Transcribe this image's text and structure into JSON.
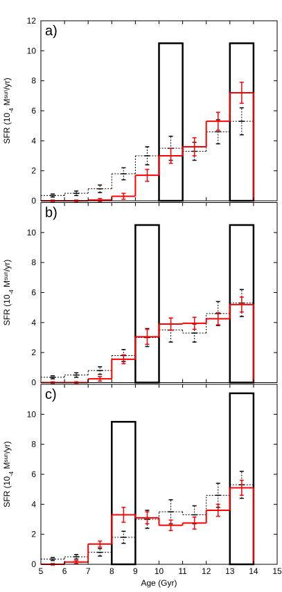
{
  "chart_data": [
    {
      "type": "histogram",
      "label": "a)",
      "ylabel": [
        "SFR (10",
        "-4",
        " M",
        "sun",
        "/yr)"
      ],
      "bins": [
        5,
        6,
        7,
        8,
        9,
        10,
        11,
        12,
        13,
        14
      ],
      "xlim": [
        5,
        15
      ],
      "ylim": [
        0,
        12
      ],
      "yticks": [
        0,
        2,
        4,
        6,
        8,
        10,
        12
      ],
      "bursts": [
        {
          "x": [
            10,
            11
          ],
          "height": 10.5
        },
        {
          "x": [
            13,
            14
          ],
          "height": 10.5
        }
      ],
      "series": [
        {
          "color": "#000000",
          "dashed": true,
          "values": [
            0.35,
            0.5,
            0.8,
            1.8,
            3.0,
            3.5,
            3.3,
            4.6,
            5.3
          ],
          "errors": [
            0.1,
            0.15,
            0.25,
            0.4,
            0.6,
            0.8,
            0.6,
            0.8,
            0.9
          ]
        },
        {
          "color": "#ff0000",
          "dashed": false,
          "values": [
            0,
            0,
            0.05,
            0.3,
            1.7,
            3.0,
            3.6,
            5.3,
            7.2
          ],
          "errors": [
            0.05,
            0.05,
            0.1,
            0.2,
            0.4,
            0.5,
            0.6,
            0.6,
            0.7
          ]
        }
      ]
    },
    {
      "type": "histogram",
      "label": "b)",
      "ylabel": [
        "SFR (10",
        "-4",
        " M",
        "sun",
        "/yr)"
      ],
      "bins": [
        5,
        6,
        7,
        8,
        9,
        10,
        11,
        12,
        13,
        14
      ],
      "xlim": [
        5,
        15
      ],
      "ylim": [
        0,
        12
      ],
      "yticks": [
        0,
        2,
        4,
        6,
        8,
        10
      ],
      "bursts": [
        {
          "x": [
            9,
            10
          ],
          "height": 10.5
        },
        {
          "x": [
            13,
            14
          ],
          "height": 10.5
        }
      ],
      "series": [
        {
          "color": "#000000",
          "dashed": true,
          "values": [
            0.35,
            0.5,
            0.8,
            1.8,
            3.0,
            3.5,
            3.3,
            4.6,
            5.3
          ],
          "errors": [
            0.1,
            0.15,
            0.25,
            0.4,
            0.6,
            0.8,
            0.6,
            0.8,
            0.9
          ]
        },
        {
          "color": "#ff0000",
          "dashed": false,
          "values": [
            0,
            0,
            0.25,
            1.55,
            3.05,
            3.9,
            3.95,
            4.25,
            5.2
          ],
          "errors": [
            0.05,
            0.05,
            0.15,
            0.3,
            0.5,
            0.4,
            0.4,
            0.4,
            0.5
          ]
        }
      ]
    },
    {
      "type": "histogram",
      "label": "c)",
      "ylabel": [
        "SFR (10",
        "-4",
        " M",
        "sun",
        "/yr)"
      ],
      "xlabel": "Age (Gyr)",
      "bins": [
        5,
        6,
        7,
        8,
        9,
        10,
        11,
        12,
        13,
        14
      ],
      "xlim": [
        5,
        15
      ],
      "ylim": [
        0,
        12
      ],
      "yticks": [
        0,
        2,
        4,
        6,
        8,
        10
      ],
      "xticks": [
        5,
        6,
        7,
        8,
        9,
        10,
        11,
        12,
        13,
        14,
        15
      ],
      "bursts": [
        {
          "x": [
            8,
            9
          ],
          "height": 9.5
        },
        {
          "x": [
            13,
            14
          ],
          "height": 11.4
        }
      ],
      "series": [
        {
          "color": "#000000",
          "dashed": true,
          "values": [
            0.35,
            0.5,
            0.8,
            1.8,
            3.0,
            3.5,
            3.3,
            4.6,
            5.3
          ],
          "errors": [
            0.1,
            0.15,
            0.25,
            0.4,
            0.6,
            0.8,
            0.6,
            0.8,
            0.9
          ]
        },
        {
          "color": "#ff0000",
          "dashed": false,
          "values": [
            0,
            0.15,
            1.35,
            3.3,
            3.1,
            2.6,
            2.75,
            3.6,
            5.1
          ],
          "errors": [
            0.05,
            0.1,
            0.2,
            0.5,
            0.4,
            0.35,
            0.4,
            0.4,
            0.5
          ]
        }
      ]
    }
  ]
}
